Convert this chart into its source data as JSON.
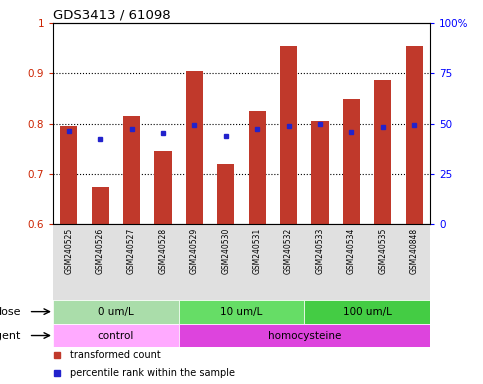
{
  "title": "GDS3413 / 61098",
  "samples": [
    "GSM240525",
    "GSM240526",
    "GSM240527",
    "GSM240528",
    "GSM240529",
    "GSM240530",
    "GSM240531",
    "GSM240532",
    "GSM240533",
    "GSM240534",
    "GSM240535",
    "GSM240848"
  ],
  "transformed_count": [
    0.795,
    0.675,
    0.815,
    0.745,
    0.905,
    0.72,
    0.825,
    0.955,
    0.805,
    0.848,
    0.887,
    0.955
  ],
  "percentile_rank": [
    0.785,
    0.77,
    0.79,
    0.782,
    0.798,
    0.775,
    0.79,
    0.795,
    0.8,
    0.783,
    0.793,
    0.798
  ],
  "ylim": [
    0.6,
    1.0
  ],
  "yticks_left": [
    0.7,
    0.8,
    0.9
  ],
  "right_yticks": [
    0,
    25,
    50,
    75,
    100
  ],
  "bar_color": "#c0392b",
  "dot_color": "#2222cc",
  "dose_groups": [
    {
      "label": "0 um/L",
      "start": 0,
      "end": 3,
      "color": "#aaddaa"
    },
    {
      "label": "10 um/L",
      "start": 4,
      "end": 7,
      "color": "#66cc66"
    },
    {
      "label": "100 um/L",
      "start": 8,
      "end": 11,
      "color": "#44bb44"
    }
  ],
  "agent_groups": [
    {
      "label": "control",
      "start": 0,
      "end": 3,
      "color": "#ff99ff"
    },
    {
      "label": "homocysteine",
      "start": 4,
      "end": 11,
      "color": "#ee44ee"
    }
  ],
  "dose_label": "dose",
  "agent_label": "agent",
  "legend_items": [
    {
      "label": "transformed count",
      "color": "#c0392b"
    },
    {
      "label": "percentile rank within the sample",
      "color": "#2222cc"
    }
  ]
}
